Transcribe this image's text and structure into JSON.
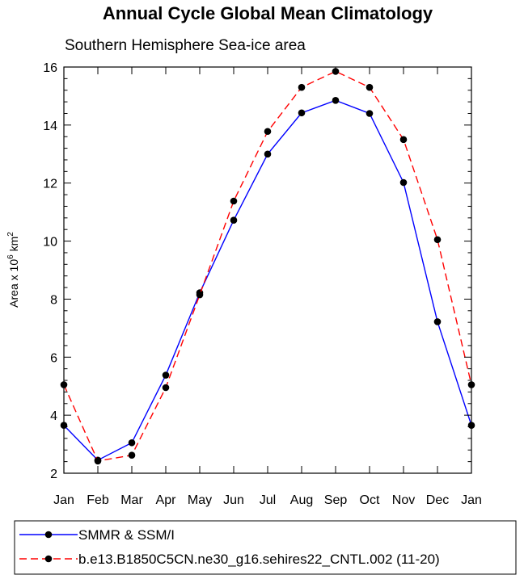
{
  "chart_data": {
    "type": "line",
    "title": "Annual Cycle Global Mean Climatology",
    "subtitle": "Southern Hemisphere Sea-ice area",
    "ylabel_base": "Area x 10",
    "ylabel_exp1": "6",
    "ylabel_unit": " km",
    "ylabel_exp2": "2",
    "xlabel": "",
    "categories": [
      "Jan",
      "Feb",
      "Mar",
      "Apr",
      "May",
      "Jun",
      "Jul",
      "Aug",
      "Sep",
      "Oct",
      "Nov",
      "Dec",
      "Jan"
    ],
    "ylim": [
      2,
      16
    ],
    "yticks": [
      2,
      4,
      6,
      8,
      10,
      12,
      14,
      16
    ],
    "grid": false,
    "legend_position": "bottom",
    "series": [
      {
        "name": "SMMR & SSM/I",
        "color": "#0000ff",
        "dash": "solid",
        "values": [
          3.65,
          2.45,
          3.05,
          5.38,
          8.22,
          10.72,
          13.0,
          14.42,
          14.85,
          14.4,
          12.02,
          7.22,
          3.65
        ]
      },
      {
        "name": "b.e13.B1850C5CN.ne30_g16.sehires22_CNTL.002 (11-20)",
        "color": "#ff0000",
        "dash": "dashed",
        "values": [
          5.05,
          2.42,
          2.62,
          4.95,
          8.15,
          11.38,
          13.78,
          15.3,
          15.85,
          15.3,
          13.5,
          10.05,
          5.05
        ]
      }
    ]
  }
}
